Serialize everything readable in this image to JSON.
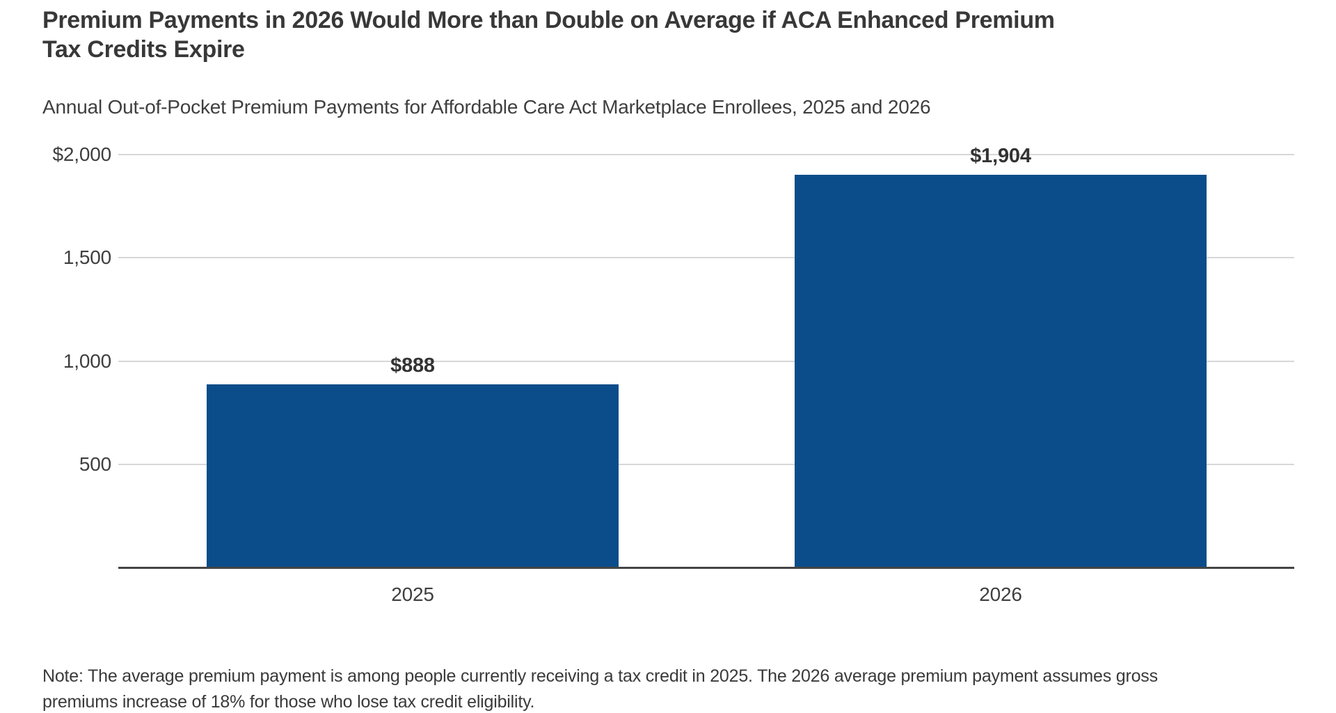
{
  "header": {
    "title_lines": [
      "Premium Payments in 2026 Would More than Double on Average if ACA Enhanced Premium",
      "Tax Credits Expire"
    ],
    "subtitle": "Annual Out-of-Pocket Premium Payments for Affordable Care Act Marketplace Enrollees, 2025 and 2026"
  },
  "chart_data": {
    "type": "bar",
    "title": "Premium Payments in 2026 Would More than Double on Average if ACA Enhanced Premium Tax Credits Expire",
    "subtitle": "Annual Out-of-Pocket Premium Payments for Affordable Care Act Marketplace Enrollees, 2025 and 2026",
    "categories": [
      "2025",
      "2026"
    ],
    "values": [
      888,
      1904
    ],
    "value_labels": [
      "$888",
      "$1,904"
    ],
    "xlabel": "",
    "ylabel": "",
    "ylim": [
      0,
      2000
    ],
    "yticks": [
      2000,
      1500,
      1000,
      500
    ],
    "ytick_labels": [
      "$2,000",
      "1,500",
      "1,000",
      "500"
    ],
    "grid": "horizontal-only",
    "legend": "none",
    "bar_color": "#0a4d8a",
    "gridline_color": "#d7d7d7",
    "axis_color": "#454545"
  },
  "note": {
    "lines": [
      "Note: The average premium payment is among people currently receiving a tax credit in 2025. The 2026 average premium payment assumes gross",
      "premiums increase of 18% for those who lose tax credit eligibility."
    ],
    "text": "Note: The average premium payment is among people currently receiving a tax credit in 2025. The 2026 average premium payment assumes gross premiums increase of 18% for those who lose tax credit eligibility."
  }
}
